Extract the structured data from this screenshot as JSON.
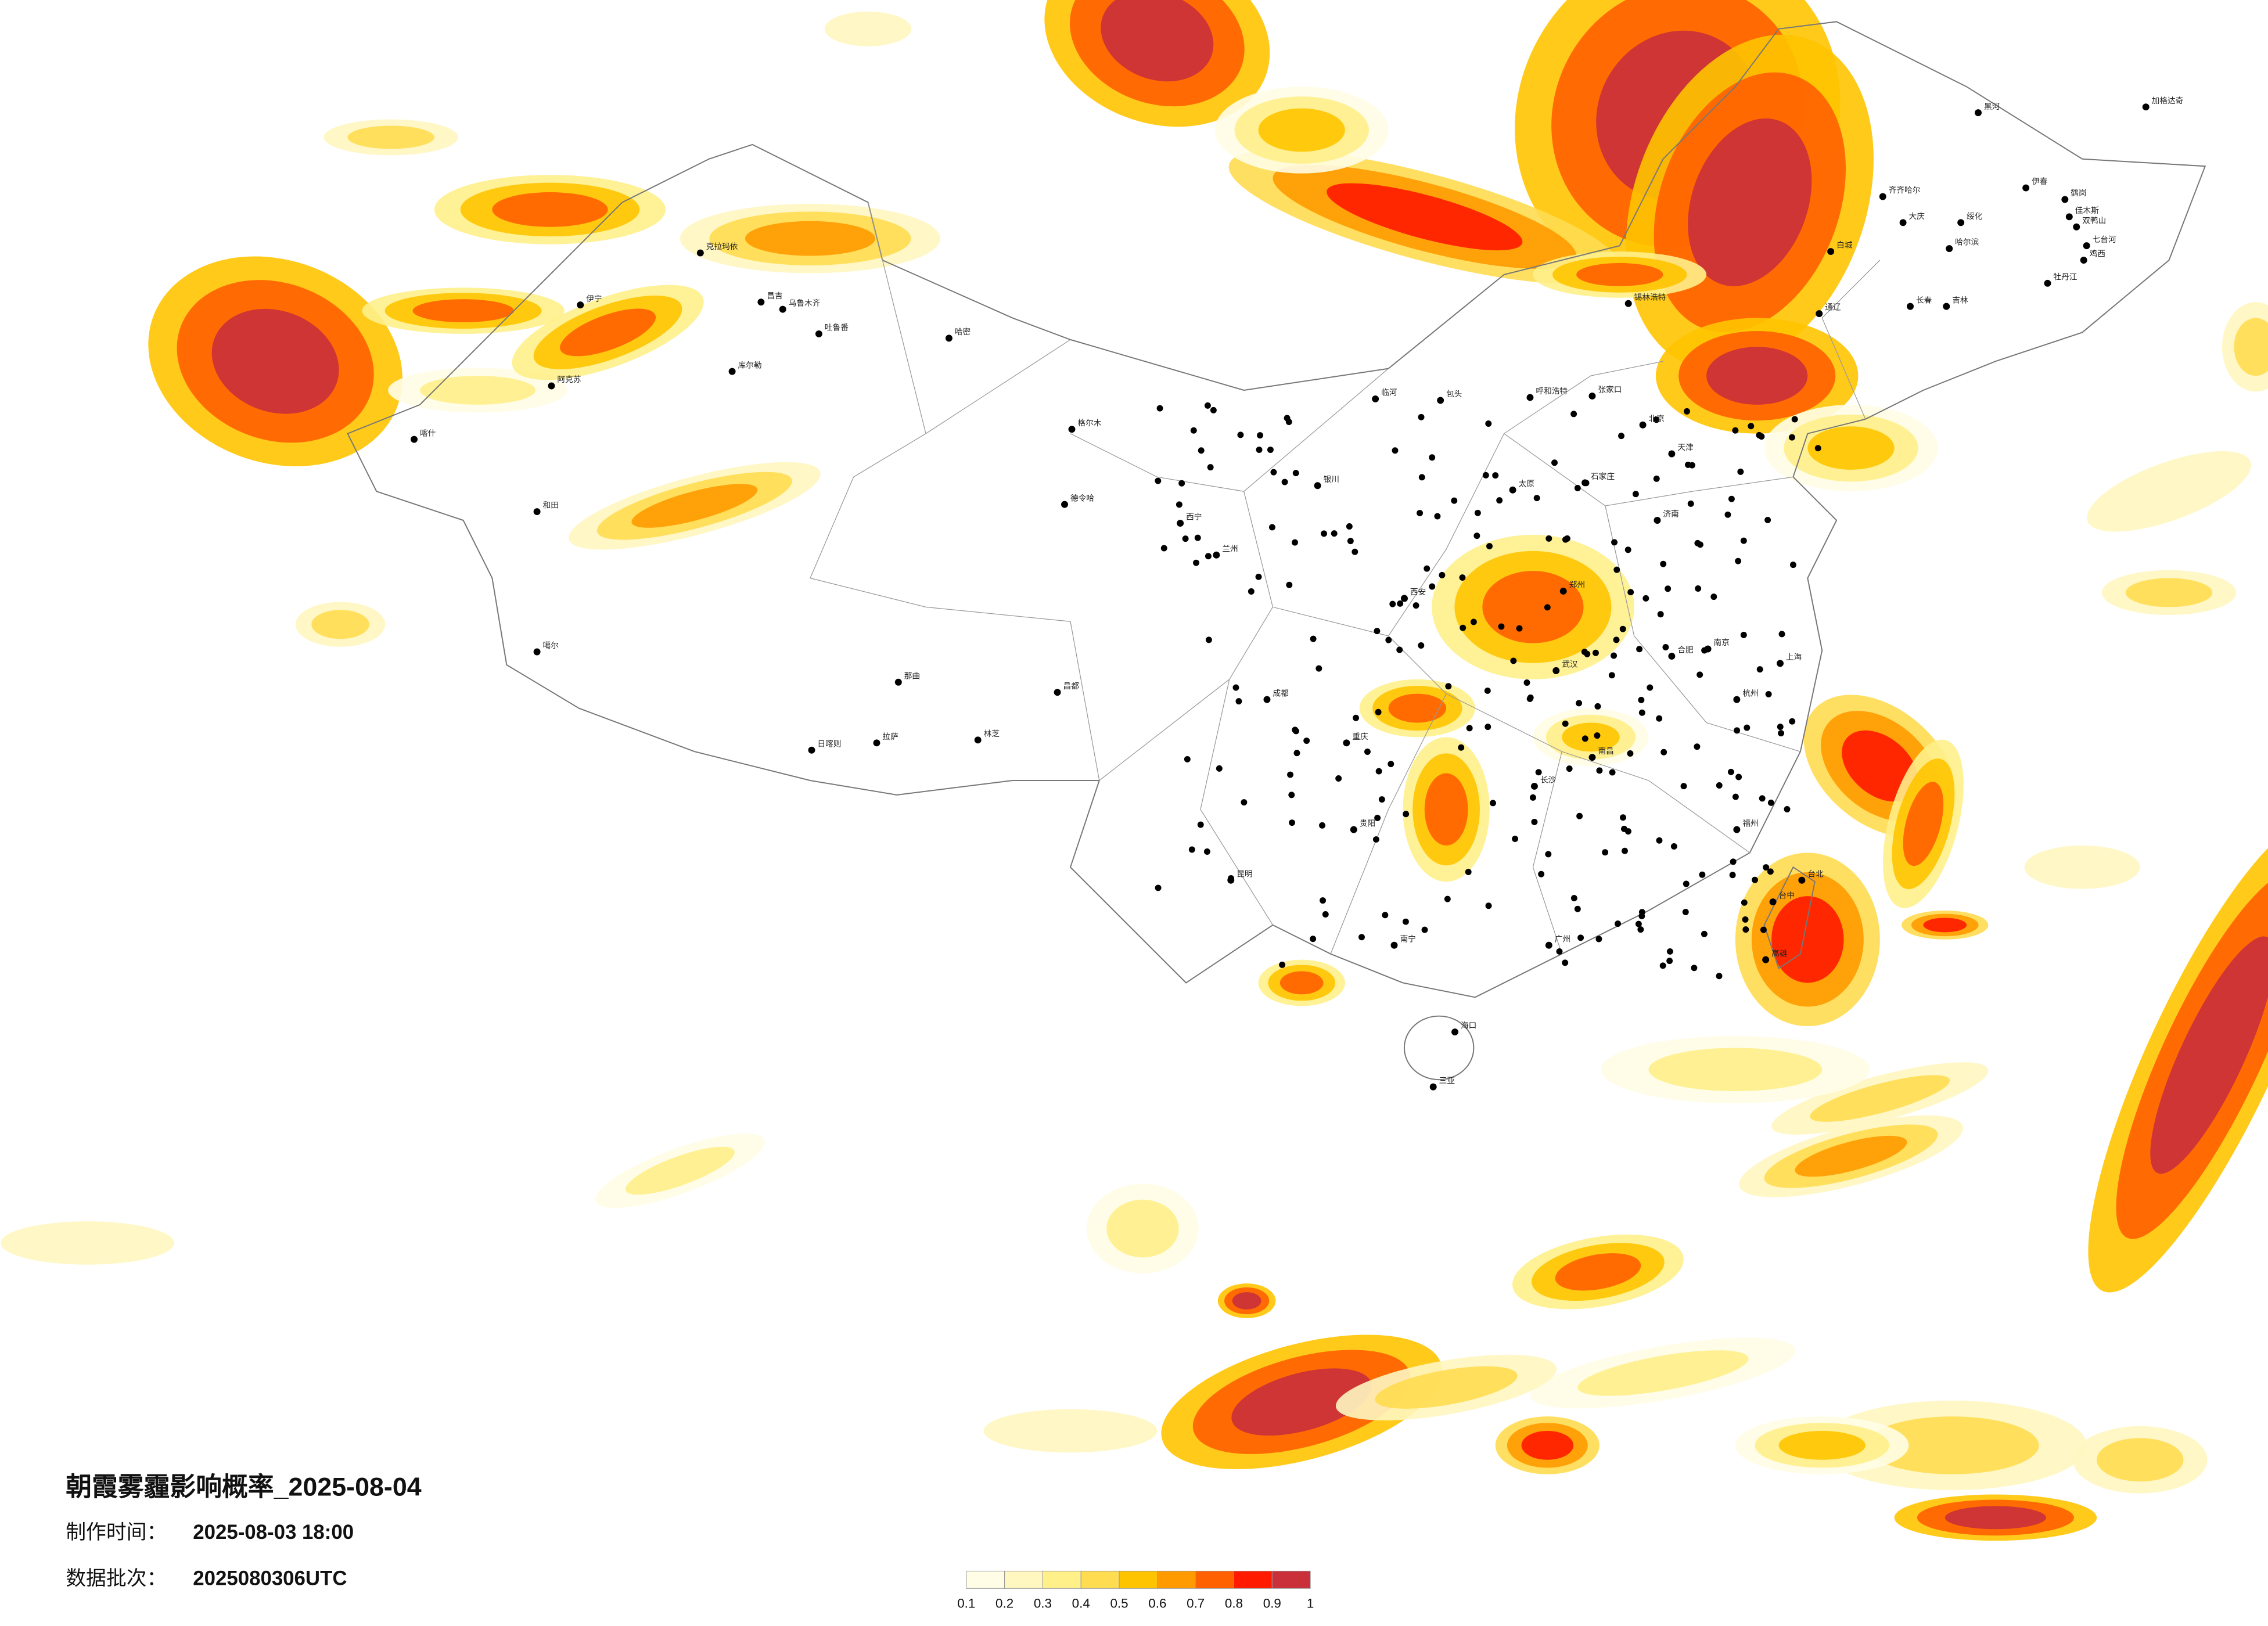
{
  "header": {
    "title": "朝霞雾霾影响概率_2025-08-04",
    "made_label": "制作时间：",
    "made_value": "2025-08-03 18:00",
    "batch_label": "数据批次：",
    "batch_value": "2025080306UTC"
  },
  "colorbar": {
    "ticks": [
      0.1,
      0.2,
      0.3,
      0.4,
      0.5,
      0.6,
      0.7,
      0.8,
      0.9,
      1
    ],
    "colors": [
      "#fffde6",
      "#fff6c0",
      "#fff08a",
      "#ffdc50",
      "#ffc400",
      "#ff9a00",
      "#ff6000",
      "#ff1a00",
      "#c9303a"
    ]
  },
  "cities": [
    "加格达奇",
    "黑河",
    "伊春",
    "鹤岗",
    "齐齐哈尔",
    "大庆",
    "绥化",
    "哈尔滨",
    "佳木斯",
    "双鸭山",
    "七台河",
    "鸡西",
    "牡丹江",
    "长春",
    "吉林",
    "通辽",
    "白城",
    "锡林浩特",
    "呼和浩特",
    "张家口",
    "包头",
    "临河",
    "北京",
    "天津",
    "石家庄",
    "太原",
    "济南",
    "郑州",
    "西安",
    "兰州",
    "西宁",
    "银川",
    "武汉",
    "南京",
    "上海",
    "杭州",
    "合肥",
    "长沙",
    "南昌",
    "福州",
    "成都",
    "重庆",
    "贵阳",
    "昆明",
    "南宁",
    "广州",
    "海口",
    "三亚",
    "拉萨",
    "日喀则",
    "林芝",
    "那曲",
    "昌都",
    "格尔木",
    "德令哈",
    "乌鲁木齐",
    "昌吉",
    "克拉玛依",
    "伊宁",
    "阿克苏",
    "喀什",
    "和田",
    "哈密",
    "库尔勒",
    "吐鲁番",
    "噶尔",
    "台北",
    "台中",
    "高雄"
  ]
}
